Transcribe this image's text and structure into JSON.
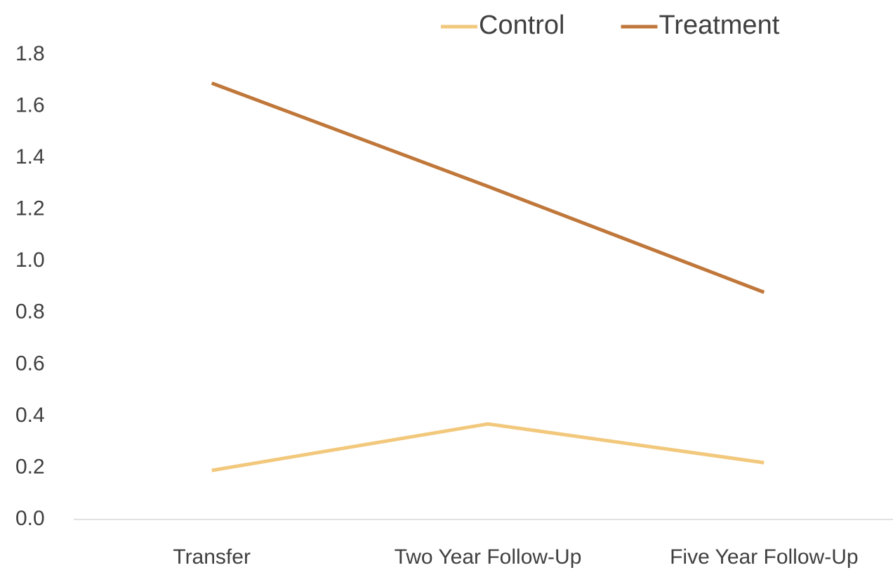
{
  "chart_data": {
    "type": "line",
    "categories": [
      "Transfer",
      "Two Year Follow-Up",
      "Five Year Follow-Up"
    ],
    "series": [
      {
        "name": "Control",
        "color": "#f2c87c",
        "values": [
          0.19,
          0.37,
          0.22
        ]
      },
      {
        "name": "Treatment",
        "color": "#c0773a",
        "values": [
          1.69,
          1.29,
          0.88
        ]
      }
    ],
    "ylim": [
      0,
      1.8
    ],
    "yticks": [
      {
        "value": 0,
        "label": "0.0"
      },
      0.2,
      0.4,
      0.6,
      0.8,
      {
        "value": 1,
        "label": "1.0"
      },
      1.2,
      1.4,
      1.6,
      1.8
    ],
    "grid": false,
    "legend": "top"
  }
}
